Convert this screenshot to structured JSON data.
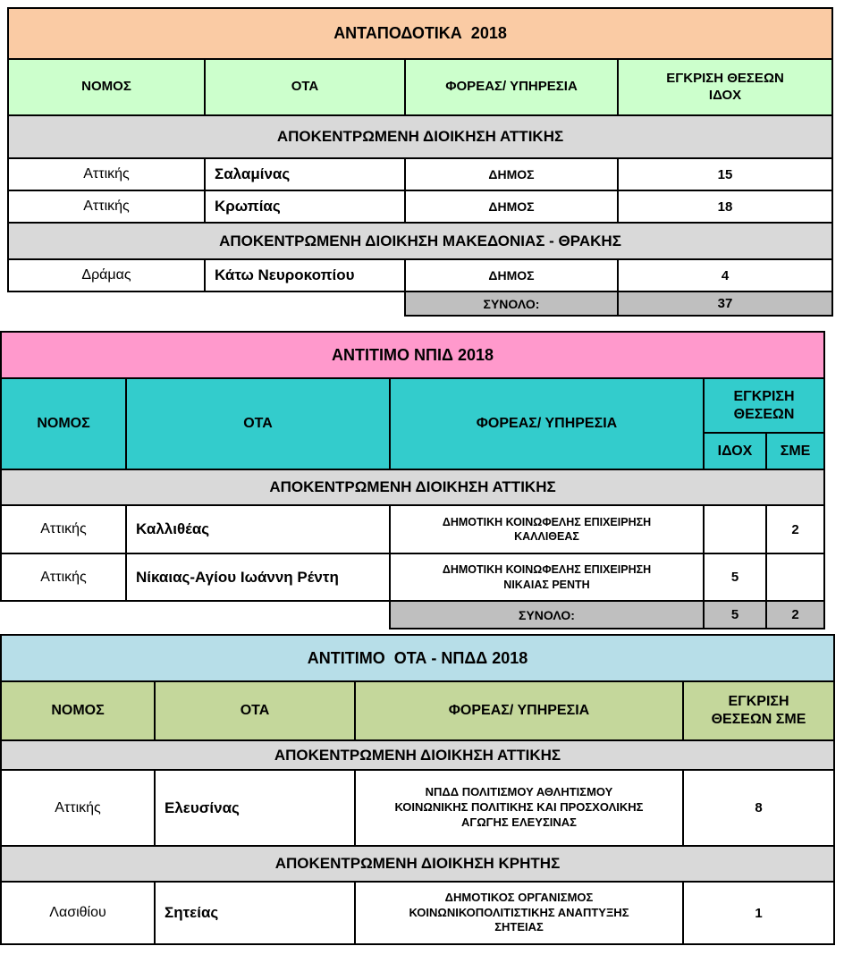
{
  "colors": {
    "t1_title_bg": "#FACBA4",
    "t1_header_bg": "#CCFFCC",
    "t2_title_bg": "#FF99CC",
    "t2_header_bg": "#33CCCC",
    "t3_title_bg": "#B7DEE8",
    "t3_header_bg": "#C4D79B",
    "section_bg": "#D9D9D9",
    "total_bg": "#BFBFBF",
    "border": "#000000",
    "page_bg": "#FFFFFF"
  },
  "t1": {
    "title": "ΑΝΤΑΠΟΔΟΤΙΚΑ  2018",
    "headers": {
      "nomos": "ΝΟΜΟΣ",
      "ota": "ΟΤΑ",
      "foreas": "ΦΟΡΕΑΣ/ ΥΠΗΡΕΣΙΑ",
      "egkrisi": "ΕΓΚΡΙΣΗ ΘΕΣΕΩΝ\nΙΔΟΧ"
    },
    "section1": "ΑΠΟΚΕΝΤΡΩΜΕΝΗ ΔΙΟΙΚΗΣΗ ΑΤΤΙΚΗΣ",
    "rows": [
      {
        "nomos": "Αττικής",
        "ota": "Σαλαμίνας",
        "foreas": "ΔΗΜΟΣ",
        "val": "15"
      },
      {
        "nomos": "Αττικής",
        "ota": "Κρωπίας",
        "foreas": "ΔΗΜΟΣ",
        "val": "18"
      }
    ],
    "section2": "ΑΠΟΚΕΝΤΡΩΜΕΝΗ ΔΙΟΙΚΗΣΗ ΜΑΚΕΔΟΝΙΑΣ - ΘΡΑΚΗΣ",
    "rows2": [
      {
        "nomos": "Δράμας",
        "ota": "Κάτω Νευροκοπίου",
        "foreas": "ΔΗΜΟΣ",
        "val": "4"
      }
    ],
    "total": {
      "label": "ΣΥΝΟΛΟ:",
      "val": "37"
    }
  },
  "t2": {
    "title": "ΑΝΤΙΤΙΜΟ ΝΠΙΔ 2018",
    "headers": {
      "nomos": "ΝΟΜΟΣ",
      "ota": "ΟΤΑ",
      "foreas": "ΦΟΡΕΑΣ/ ΥΠΗΡΕΣΙΑ",
      "egkrisi": "ΕΓΚΡΙΣΗ\nΘΕΣΕΩΝ",
      "idoh": "ΙΔΟΧ",
      "sme": "ΣΜΕ"
    },
    "section1": "ΑΠΟΚΕΝΤΡΩΜΕΝΗ ΔΙΟΙΚΗΣΗ ΑΤΤΙΚΗΣ",
    "rows": [
      {
        "nomos": "Αττικής",
        "ota": "Καλλιθέας",
        "foreas": "ΔΗΜΟΤΙΚΗ ΚΟΙΝΩΦΕΛΗΣ ΕΠΙΧΕΙΡΗΣΗ\nΚΑΛΛΙΘΕΑΣ",
        "idoh": "",
        "sme": "2"
      },
      {
        "nomos": "Αττικής",
        "ota": "Νίκαιας-Αγίου Ιωάννη Ρέντη",
        "foreas": "ΔΗΜΟΤΙΚΗ ΚΟΙΝΩΦΕΛΗΣ ΕΠΙΧΕΙΡΗΣΗ\nΝΙΚΑΙΑΣ ΡΕΝΤΗ",
        "idoh": "5",
        "sme": ""
      }
    ],
    "total": {
      "label": "ΣΥΝΟΛΟ:",
      "idoh": "5",
      "sme": "2"
    }
  },
  "t3": {
    "title": "ΑΝΤΙΤΙΜΟ  ΟΤΑ - ΝΠΔΔ 2018",
    "headers": {
      "nomos": "ΝΟΜΟΣ",
      "ota": "ΟΤΑ",
      "foreas": "ΦΟΡΕΑΣ/ ΥΠΗΡΕΣΙΑ",
      "egkrisi": "ΕΓΚΡΙΣΗ\nΘΕΣΕΩΝ ΣΜΕ"
    },
    "section1": "ΑΠΟΚΕΝΤΡΩΜΕΝΗ ΔΙΟΙΚΗΣΗ ΑΤΤΙΚΗΣ",
    "rows": [
      {
        "nomos": "Αττικής",
        "ota": "Ελευσίνας",
        "foreas": "ΝΠΔΔ ΠΟΛΙΤΙΣΜΟΥ ΑΘΛΗΤΙΣΜΟΥ\nΚΟΙΝΩΝΙΚΗΣ ΠΟΛΙΤΙΚΗΣ ΚΑΙ ΠΡΟΣΧΟΛΙΚΗΣ\nΑΓΩΓΗΣ ΕΛΕΥΣΙΝΑΣ",
        "val": "8"
      }
    ],
    "section2": "ΑΠΟΚΕΝΤΡΩΜΕΝΗ ΔΙΟΙΚΗΣΗ ΚΡΗΤΗΣ",
    "rows2": [
      {
        "nomos": "Λασιθίου",
        "ota": "Σητείας",
        "foreas": "ΔΗΜΟΤΙΚΟΣ ΟΡΓΑΝΙΣΜΟΣ\nΚΟΙΝΩΝΙΚΟΠΟΛΙΤΙΣΤΙΚΗΣ ΑΝΑΠΤΥΞΗΣ\nΣΗΤΕΙΑΣ",
        "val": "1"
      }
    ]
  }
}
